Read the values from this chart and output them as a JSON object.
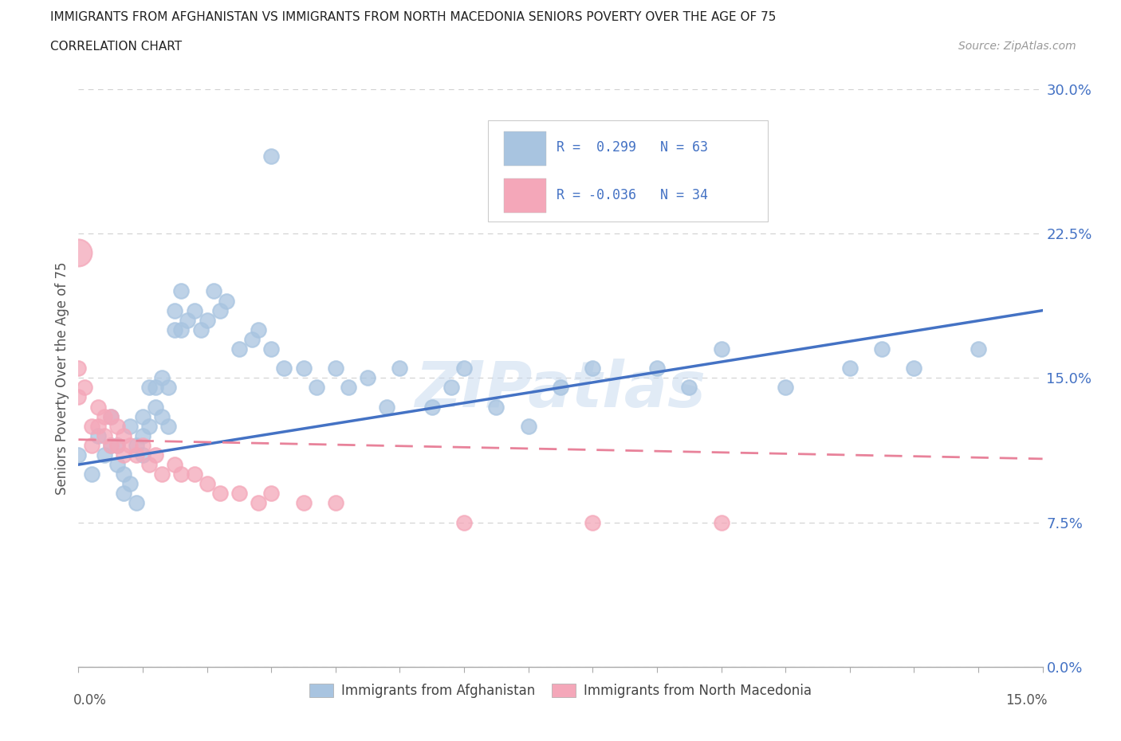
{
  "title": "IMMIGRANTS FROM AFGHANISTAN VS IMMIGRANTS FROM NORTH MACEDONIA SENIORS POVERTY OVER THE AGE OF 75",
  "subtitle": "CORRELATION CHART",
  "source": "Source: ZipAtlas.com",
  "ylabel_label": "Seniors Poverty Over the Age of 75",
  "legend_label1": "Immigrants from Afghanistan",
  "legend_label2": "Immigrants from North Macedonia",
  "color_afghanistan": "#a8c4e0",
  "color_macedonia": "#f4a7b9",
  "color_trendline_afghanistan": "#4472c4",
  "color_trendline_macedonia": "#e8829a",
  "watermark": "ZIPatlas",
  "background_color": "#ffffff",
  "grid_color": "#d0d0d0",
  "xlim": [
    0.0,
    0.15
  ],
  "ylim": [
    0.0,
    0.3
  ],
  "xticks": [
    0.0,
    0.05,
    0.1,
    0.15
  ],
  "yticks": [
    0.0,
    0.075,
    0.15,
    0.225,
    0.3
  ],
  "afghanistan_x": [
    0.0,
    0.002,
    0.003,
    0.004,
    0.005,
    0.005,
    0.006,
    0.006,
    0.007,
    0.007,
    0.008,
    0.008,
    0.009,
    0.009,
    0.01,
    0.01,
    0.01,
    0.011,
    0.011,
    0.012,
    0.012,
    0.013,
    0.013,
    0.014,
    0.014,
    0.015,
    0.015,
    0.016,
    0.016,
    0.017,
    0.018,
    0.019,
    0.02,
    0.021,
    0.022,
    0.023,
    0.025,
    0.027,
    0.028,
    0.03,
    0.032,
    0.035,
    0.037,
    0.04,
    0.042,
    0.045,
    0.048,
    0.05,
    0.055,
    0.058,
    0.06,
    0.065,
    0.07,
    0.075,
    0.08,
    0.09,
    0.095,
    0.1,
    0.11,
    0.12,
    0.125,
    0.13,
    0.14
  ],
  "afghanistan_y": [
    0.11,
    0.1,
    0.12,
    0.11,
    0.13,
    0.115,
    0.115,
    0.105,
    0.1,
    0.09,
    0.125,
    0.095,
    0.115,
    0.085,
    0.13,
    0.12,
    0.11,
    0.145,
    0.125,
    0.145,
    0.135,
    0.15,
    0.13,
    0.145,
    0.125,
    0.185,
    0.175,
    0.195,
    0.175,
    0.18,
    0.185,
    0.175,
    0.18,
    0.195,
    0.185,
    0.19,
    0.165,
    0.17,
    0.175,
    0.165,
    0.155,
    0.155,
    0.145,
    0.155,
    0.145,
    0.15,
    0.135,
    0.155,
    0.135,
    0.145,
    0.155,
    0.135,
    0.125,
    0.145,
    0.155,
    0.155,
    0.145,
    0.165,
    0.145,
    0.155,
    0.165,
    0.155,
    0.165
  ],
  "afghanistan_outlier_x": [
    0.03
  ],
  "afghanistan_outlier_y": [
    0.265
  ],
  "macedonia_x": [
    0.0,
    0.0,
    0.001,
    0.002,
    0.002,
    0.003,
    0.003,
    0.004,
    0.004,
    0.005,
    0.005,
    0.006,
    0.006,
    0.007,
    0.007,
    0.008,
    0.009,
    0.01,
    0.011,
    0.012,
    0.013,
    0.015,
    0.016,
    0.018,
    0.02,
    0.022,
    0.025,
    0.028,
    0.03,
    0.035,
    0.04,
    0.06,
    0.08,
    0.1
  ],
  "macedonia_y": [
    0.155,
    0.14,
    0.145,
    0.125,
    0.115,
    0.135,
    0.125,
    0.13,
    0.12,
    0.13,
    0.115,
    0.125,
    0.115,
    0.12,
    0.11,
    0.115,
    0.11,
    0.115,
    0.105,
    0.11,
    0.1,
    0.105,
    0.1,
    0.1,
    0.095,
    0.09,
    0.09,
    0.085,
    0.09,
    0.085,
    0.085,
    0.075,
    0.075,
    0.075
  ],
  "macedonia_big_x": [
    0.0
  ],
  "macedonia_big_y": [
    0.215
  ],
  "afg_trend_x0": 0.0,
  "afg_trend_y0": 0.105,
  "afg_trend_x1": 0.15,
  "afg_trend_y1": 0.185,
  "mac_trend_x0": 0.0,
  "mac_trend_y0": 0.118,
  "mac_trend_x1": 0.15,
  "mac_trend_y1": 0.108
}
